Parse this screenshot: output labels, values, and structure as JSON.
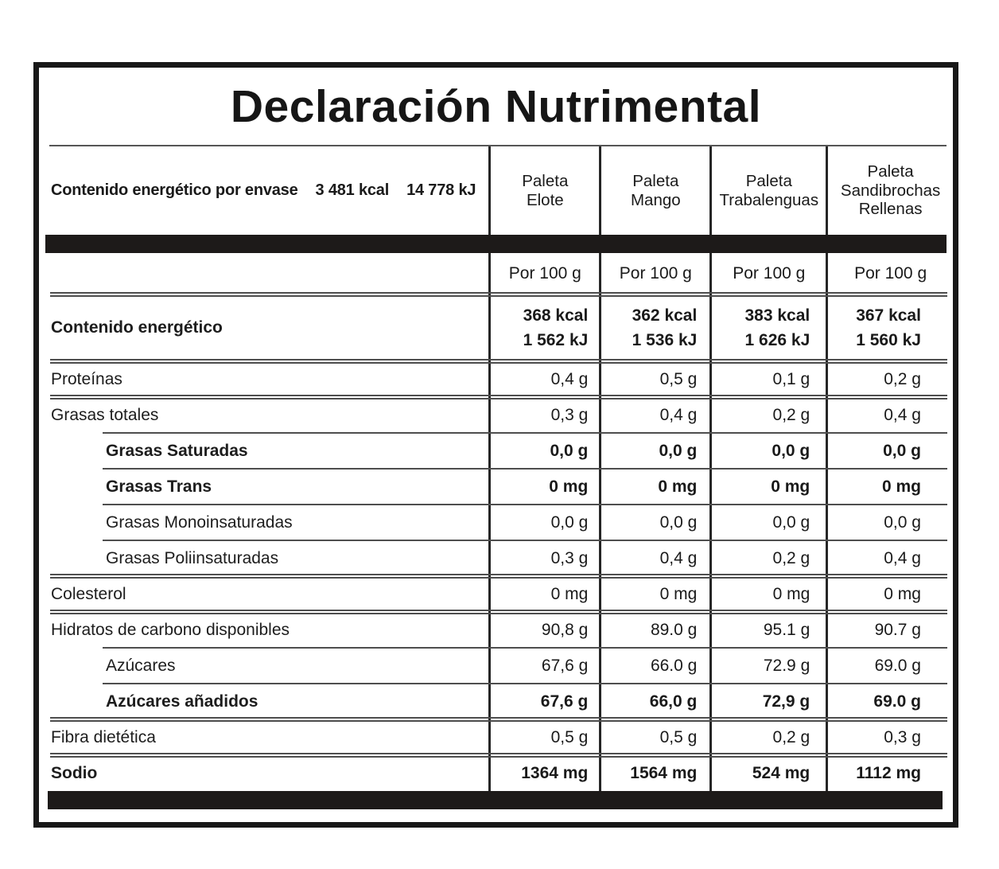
{
  "colors": {
    "ink": "#1a1a1a",
    "bar": "#1d1a19",
    "rule_line": "#4e4e4e",
    "outer_border": "#181818"
  },
  "title": "Declaración Nutrimental",
  "header": {
    "row_label": "Contenido energético por envase",
    "kcal_per_package": "3 481 kcal",
    "kj_per_package": "14 778 kJ",
    "columns": [
      "Paleta\nElote",
      "Paleta\nMango",
      "Paleta\nTrabalenguas",
      "Paleta\nSandibrochas\nRellenas"
    ]
  },
  "per_portion_labels": [
    "Por 100 g",
    "Por 100 g",
    "Por 100 g",
    "Por 100 g"
  ],
  "rows": [
    {
      "label": "Contenido energético",
      "values": [
        "368 kcal\n1 562 kJ",
        "362 kcal\n1 536 kJ",
        "383 kcal\n1 626 kJ",
        "367 kcal\n1 560 kJ"
      ],
      "bold": true,
      "indent": false
    },
    {
      "label": "Proteínas",
      "values": [
        "0,4 g",
        "0,5 g",
        "0,1 g",
        "0,2 g"
      ],
      "bold": false,
      "indent": false
    },
    {
      "label": "Grasas totales",
      "values": [
        "0,3 g",
        "0,4 g",
        "0,2 g",
        "0,4 g"
      ],
      "bold": false,
      "indent": false
    },
    {
      "label": "Grasas Saturadas",
      "values": [
        "0,0 g",
        "0,0 g",
        "0,0 g",
        "0,0 g"
      ],
      "bold": true,
      "indent": true
    },
    {
      "label": "Grasas Trans",
      "values": [
        "0 mg",
        "0 mg",
        "0 mg",
        "0 mg"
      ],
      "bold": true,
      "indent": true
    },
    {
      "label": "Grasas Monoinsaturadas",
      "values": [
        "0,0 g",
        "0,0 g",
        "0,0 g",
        "0,0 g"
      ],
      "bold": false,
      "indent": true
    },
    {
      "label": "Grasas Poliinsaturadas",
      "values": [
        "0,3 g",
        "0,4 g",
        "0,2 g",
        "0,4 g"
      ],
      "bold": false,
      "indent": true
    },
    {
      "label": "Colesterol",
      "values": [
        "0 mg",
        "0 mg",
        "0 mg",
        "0 mg"
      ],
      "bold": false,
      "indent": false
    },
    {
      "label": "Hidratos de carbono disponibles",
      "values": [
        "90,8 g",
        "89.0 g",
        "95.1 g",
        "90.7 g"
      ],
      "bold": false,
      "indent": false
    },
    {
      "label": "Azúcares",
      "values": [
        "67,6 g",
        "66.0 g",
        "72.9 g",
        "69.0 g"
      ],
      "bold": false,
      "indent": true
    },
    {
      "label": "Azúcares añadidos",
      "values": [
        "67,6 g",
        "66,0 g",
        "72,9 g",
        "69.0 g"
      ],
      "bold": true,
      "indent": true
    },
    {
      "label": "Fibra dietética",
      "values": [
        "0,5 g",
        "0,5 g",
        "0,2 g",
        "0,3 g"
      ],
      "bold": false,
      "indent": false
    },
    {
      "label": "Sodio",
      "values": [
        "1364 mg",
        "1564 mg",
        "524 mg",
        "1112 mg"
      ],
      "bold": true,
      "indent": false
    }
  ]
}
